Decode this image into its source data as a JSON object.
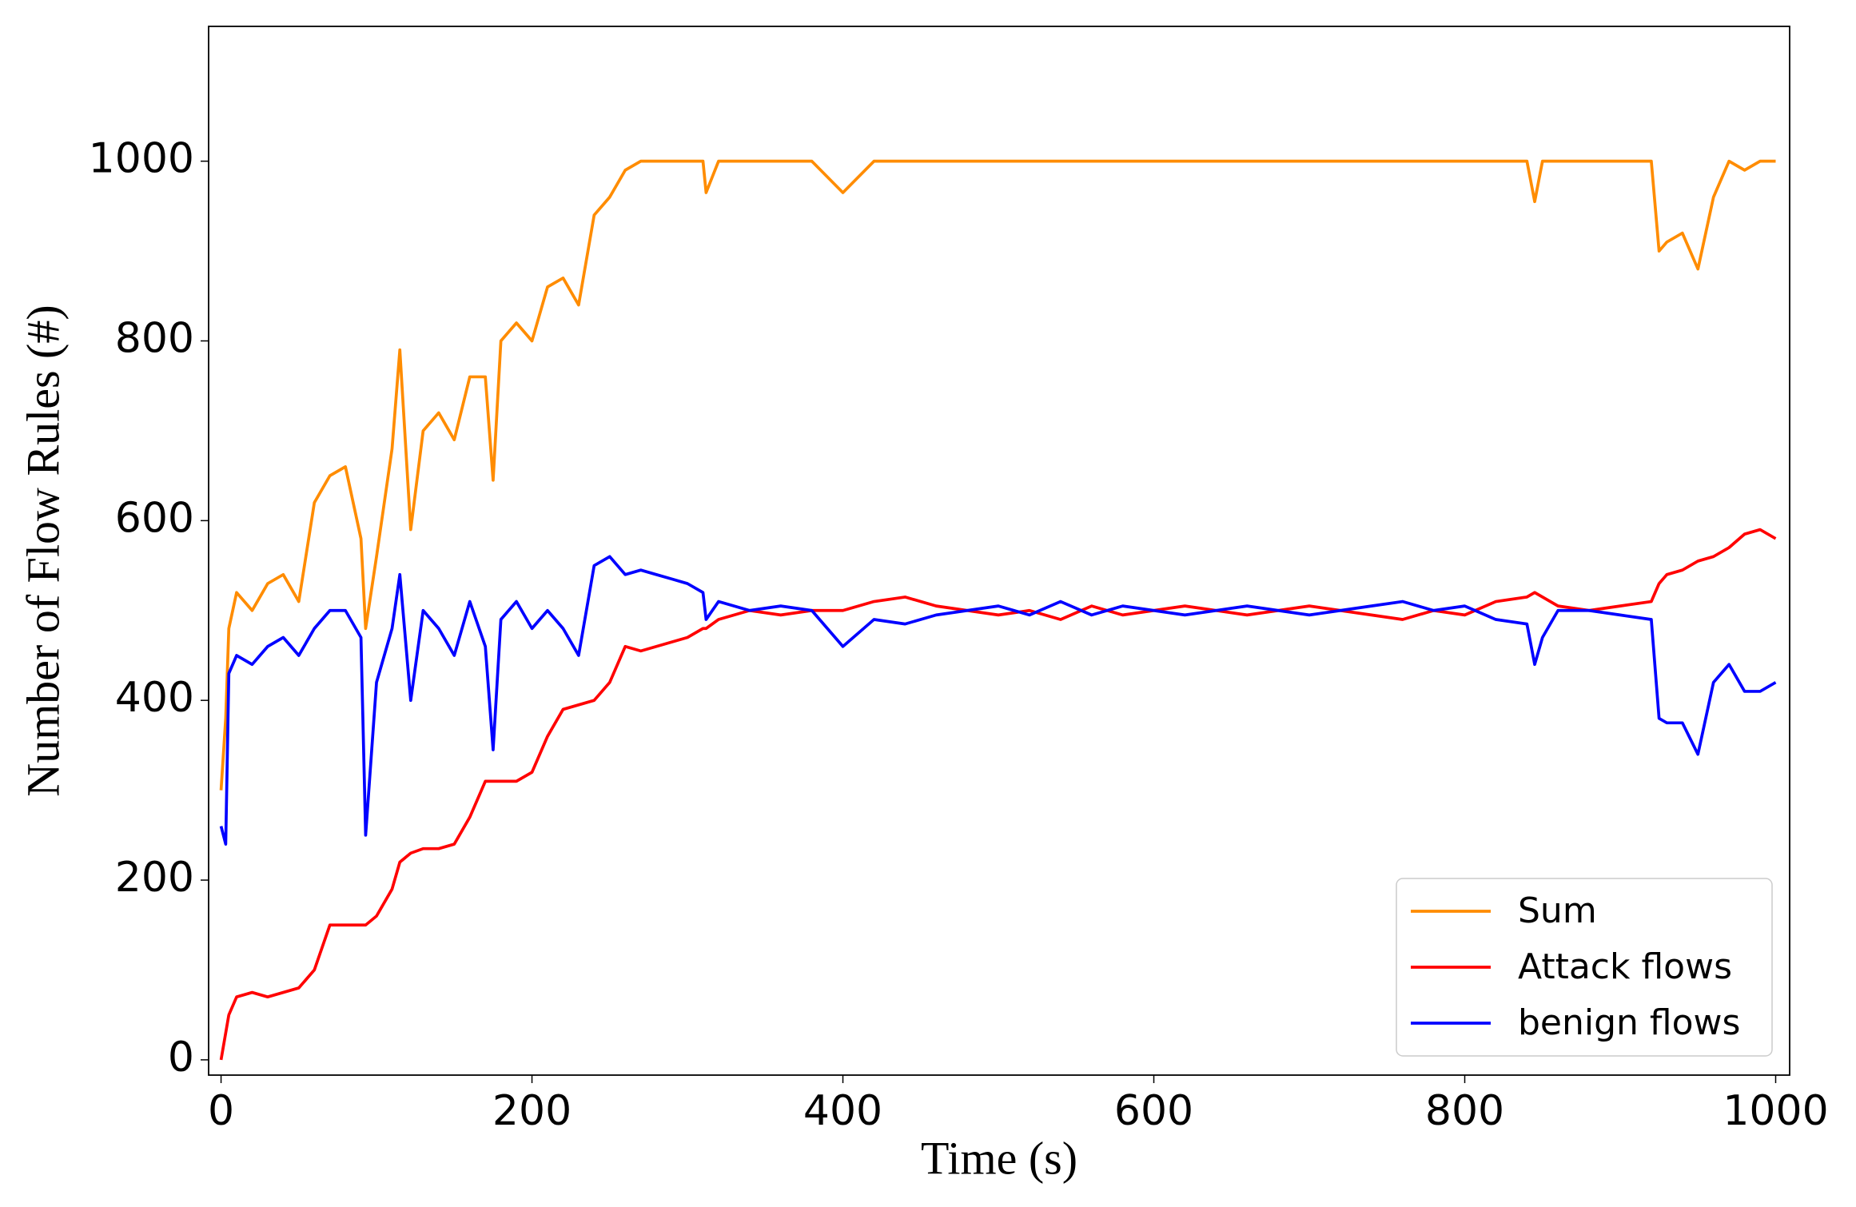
{
  "chart_data": {
    "type": "line",
    "xlabel": "Time (s)",
    "ylabel": "Number of Flow Rules (#)",
    "x": [
      0,
      3,
      5,
      10,
      20,
      30,
      40,
      50,
      60,
      70,
      80,
      90,
      93,
      100,
      110,
      115,
      122,
      130,
      140,
      150,
      160,
      170,
      175,
      180,
      190,
      200,
      210,
      220,
      230,
      240,
      250,
      260,
      270,
      280,
      290,
      300,
      310,
      312,
      320,
      340,
      360,
      380,
      400,
      420,
      440,
      460,
      480,
      500,
      520,
      540,
      560,
      580,
      600,
      620,
      640,
      660,
      680,
      700,
      720,
      740,
      760,
      780,
      800,
      820,
      840,
      845,
      850,
      860,
      880,
      900,
      920,
      925,
      930,
      940,
      950,
      960,
      970,
      980,
      990,
      1000
    ],
    "series": [
      {
        "name": "Sum",
        "color": "#ff8c00",
        "values": [
          300,
          380,
          480,
          520,
          500,
          530,
          540,
          510,
          620,
          650,
          660,
          580,
          480,
          560,
          680,
          790,
          590,
          700,
          720,
          690,
          760,
          760,
          645,
          800,
          820,
          800,
          860,
          870,
          840,
          940,
          960,
          990,
          1000,
          1000,
          1000,
          1000,
          1000,
          965,
          1000,
          1000,
          1000,
          1000,
          965,
          1000,
          1000,
          1000,
          1000,
          1000,
          1000,
          1000,
          1000,
          1000,
          1000,
          1000,
          1000,
          1000,
          1000,
          1000,
          1000,
          1000,
          1000,
          1000,
          1000,
          1000,
          1000,
          955,
          1000,
          1000,
          1000,
          1000,
          1000,
          900,
          910,
          920,
          880,
          960,
          1000,
          990,
          1000,
          1000
        ]
      },
      {
        "name": "Attack flows",
        "color": "#ff0000",
        "values": [
          0,
          30,
          50,
          70,
          75,
          70,
          75,
          80,
          100,
          150,
          150,
          150,
          150,
          160,
          190,
          220,
          230,
          235,
          235,
          240,
          270,
          310,
          310,
          310,
          310,
          320,
          360,
          390,
          395,
          400,
          420,
          460,
          455,
          460,
          465,
          470,
          480,
          480,
          490,
          500,
          495,
          500,
          500,
          510,
          515,
          505,
          500,
          495,
          500,
          490,
          505,
          495,
          500,
          505,
          500,
          495,
          500,
          505,
          500,
          495,
          490,
          500,
          495,
          510,
          515,
          520,
          515,
          505,
          500,
          505,
          510,
          530,
          540,
          545,
          555,
          560,
          570,
          585,
          590,
          580
        ]
      },
      {
        "name": "benign flows",
        "color": "#0000ff",
        "values": [
          260,
          240,
          430,
          450,
          440,
          460,
          470,
          450,
          480,
          500,
          500,
          470,
          250,
          420,
          480,
          540,
          400,
          500,
          480,
          450,
          510,
          460,
          345,
          490,
          510,
          480,
          500,
          480,
          450,
          550,
          560,
          540,
          545,
          540,
          535,
          530,
          520,
          490,
          510,
          500,
          505,
          500,
          460,
          490,
          485,
          495,
          500,
          505,
          495,
          510,
          495,
          505,
          500,
          495,
          500,
          505,
          500,
          495,
          500,
          505,
          510,
          500,
          505,
          490,
          485,
          440,
          470,
          500,
          500,
          495,
          490,
          380,
          375,
          375,
          340,
          420,
          440,
          410,
          410,
          420
        ]
      }
    ],
    "xlim": [
      -8,
      1009
    ],
    "ylim": [
      -17,
      1150
    ],
    "xticks": [
      0,
      200,
      400,
      600,
      800,
      1000
    ],
    "yticks": [
      0,
      200,
      400,
      600,
      800,
      1000
    ],
    "grid": false,
    "legend": "lower right"
  }
}
